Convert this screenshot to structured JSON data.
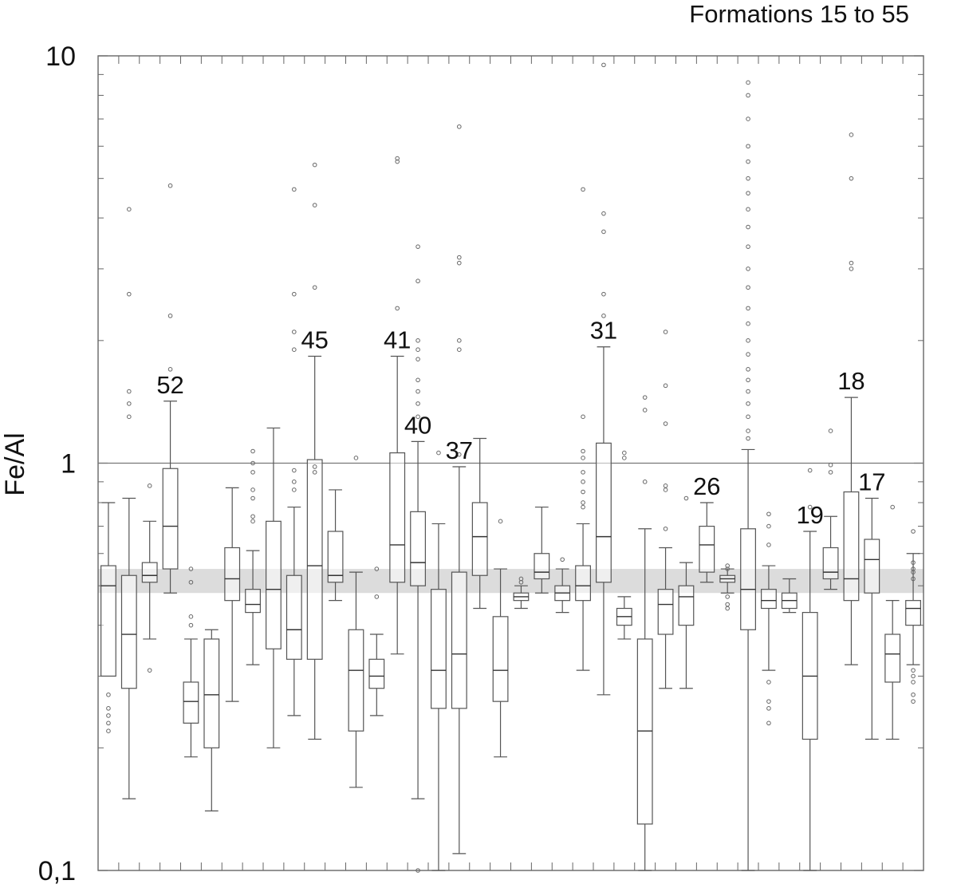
{
  "chart_data": {
    "type": "box",
    "title": "Formations 15 to 55",
    "ylabel": "Fe/Al",
    "xlabel": "",
    "yscale": "log",
    "ylim": [
      0.1,
      10
    ],
    "y_ticks": [
      {
        "value": 0.1,
        "label": "0,1"
      },
      {
        "value": 1,
        "label": "1"
      },
      {
        "value": 10,
        "label": "10"
      }
    ],
    "reference_line": 1,
    "reference_band": [
      0.48,
      0.55
    ],
    "formations": [
      {
        "label": "",
        "q1": 0.3,
        "median": 0.5,
        "q3": 0.56,
        "whisker_low": 0.3,
        "whisker_high": 0.8,
        "outliers": [
          0.27,
          0.25,
          0.24,
          0.23,
          0.22
        ]
      },
      {
        "label": "",
        "q1": 0.28,
        "median": 0.38,
        "q3": 0.53,
        "whisker_low": 0.15,
        "whisker_high": 0.82,
        "outliers": [
          4.2,
          2.6,
          1.5,
          1.4,
          1.3
        ]
      },
      {
        "label": "",
        "q1": 0.51,
        "median": 0.53,
        "q3": 0.57,
        "whisker_low": 0.37,
        "whisker_high": 0.72,
        "outliers": [
          0.88,
          0.31
        ]
      },
      {
        "label": "52",
        "q1": 0.55,
        "median": 0.7,
        "q3": 0.97,
        "whisker_low": 0.48,
        "whisker_high": 1.42,
        "outliers": [
          4.8,
          2.3,
          1.7
        ]
      },
      {
        "label": "",
        "q1": 0.23,
        "median": 0.26,
        "q3": 0.29,
        "whisker_low": 0.19,
        "whisker_high": 0.37,
        "outliers": [
          0.55,
          0.51,
          0.42,
          0.4
        ]
      },
      {
        "label": "",
        "q1": 0.2,
        "median": 0.27,
        "q3": 0.37,
        "whisker_low": 0.14,
        "whisker_high": 0.39,
        "outliers": []
      },
      {
        "label": "",
        "q1": 0.46,
        "median": 0.52,
        "q3": 0.62,
        "whisker_low": 0.26,
        "whisker_high": 0.87,
        "outliers": []
      },
      {
        "label": "",
        "q1": 0.43,
        "median": 0.45,
        "q3": 0.49,
        "whisker_low": 0.32,
        "whisker_high": 0.61,
        "outliers": [
          1.07,
          1.0,
          0.95,
          0.86,
          0.82,
          0.74,
          0.72
        ]
      },
      {
        "label": "",
        "q1": 0.35,
        "median": 0.49,
        "q3": 0.72,
        "whisker_low": 0.2,
        "whisker_high": 1.22,
        "outliers": []
      },
      {
        "label": "",
        "q1": 0.33,
        "median": 0.39,
        "q3": 0.53,
        "whisker_low": 0.24,
        "whisker_high": 0.78,
        "outliers": [
          4.7,
          2.6,
          2.1,
          1.9,
          0.96,
          0.9,
          0.86
        ]
      },
      {
        "label": "45",
        "q1": 0.33,
        "median": 0.56,
        "q3": 1.02,
        "whisker_low": 0.21,
        "whisker_high": 1.83,
        "outliers": [
          5.4,
          4.3,
          2.7,
          0.98,
          0.95
        ]
      },
      {
        "label": "",
        "q1": 0.51,
        "median": 0.53,
        "q3": 0.68,
        "whisker_low": 0.46,
        "whisker_high": 0.86,
        "outliers": []
      },
      {
        "label": "",
        "q1": 0.22,
        "median": 0.31,
        "q3": 0.39,
        "whisker_low": 0.16,
        "whisker_high": 0.54,
        "outliers": [
          1.03
        ]
      },
      {
        "label": "",
        "q1": 0.28,
        "median": 0.3,
        "q3": 0.33,
        "whisker_low": 0.24,
        "whisker_high": 0.38,
        "outliers": [
          0.55,
          0.47
        ]
      },
      {
        "label": "41",
        "q1": 0.51,
        "median": 0.63,
        "q3": 1.06,
        "whisker_low": 0.34,
        "whisker_high": 1.83,
        "outliers": [
          5.6,
          5.5,
          2.4
        ]
      },
      {
        "label": "40",
        "q1": 0.5,
        "median": 0.57,
        "q3": 0.76,
        "whisker_low": 0.15,
        "whisker_high": 1.13,
        "outliers": [
          3.4,
          2.8,
          2.0,
          1.9,
          1.8,
          1.6,
          1.5,
          1.4,
          1.3,
          0.1
        ]
      },
      {
        "label": "",
        "q1": 0.25,
        "median": 0.31,
        "q3": 0.49,
        "whisker_low": 0.1,
        "whisker_high": 0.71,
        "outliers": [
          1.06
        ]
      },
      {
        "label": "37",
        "q1": 0.25,
        "median": 0.34,
        "q3": 0.54,
        "whisker_low": 0.11,
        "whisker_high": 0.98,
        "outliers": [
          6.7,
          3.2,
          3.1,
          2.0,
          1.9,
          1.05
        ]
      },
      {
        "label": "",
        "q1": 0.53,
        "median": 0.66,
        "q3": 0.8,
        "whisker_low": 0.44,
        "whisker_high": 1.15,
        "outliers": []
      },
      {
        "label": "",
        "q1": 0.26,
        "median": 0.31,
        "q3": 0.42,
        "whisker_low": 0.19,
        "whisker_high": 0.55,
        "outliers": [
          0.72
        ]
      },
      {
        "label": "",
        "q1": 0.46,
        "median": 0.47,
        "q3": 0.48,
        "whisker_low": 0.44,
        "whisker_high": 0.5,
        "outliers": [
          0.52,
          0.51
        ]
      },
      {
        "label": "",
        "q1": 0.52,
        "median": 0.54,
        "q3": 0.6,
        "whisker_low": 0.48,
        "whisker_high": 0.78,
        "outliers": []
      },
      {
        "label": "",
        "q1": 0.46,
        "median": 0.48,
        "q3": 0.5,
        "whisker_low": 0.43,
        "whisker_high": 0.55,
        "outliers": [
          0.58
        ]
      },
      {
        "label": "",
        "q1": 0.46,
        "median": 0.5,
        "q3": 0.56,
        "whisker_low": 0.31,
        "whisker_high": 0.71,
        "outliers": [
          4.7,
          1.3,
          1.07,
          1.03,
          0.95,
          0.9,
          0.85,
          0.8,
          0.78
        ]
      },
      {
        "label": "31",
        "q1": 0.51,
        "median": 0.66,
        "q3": 1.12,
        "whisker_low": 0.27,
        "whisker_high": 1.93,
        "outliers": [
          9.5,
          4.1,
          3.7,
          2.6,
          2.3
        ]
      },
      {
        "label": "",
        "q1": 0.4,
        "median": 0.42,
        "q3": 0.44,
        "whisker_low": 0.37,
        "whisker_high": 0.47,
        "outliers": [
          1.06,
          1.03
        ]
      },
      {
        "label": "",
        "q1": 0.13,
        "median": 0.22,
        "q3": 0.37,
        "whisker_low": 0.1,
        "whisker_high": 0.69,
        "outliers": [
          1.45,
          1.35,
          0.9
        ]
      },
      {
        "label": "",
        "q1": 0.38,
        "median": 0.45,
        "q3": 0.49,
        "whisker_low": 0.28,
        "whisker_high": 0.62,
        "outliers": [
          2.1,
          1.55,
          1.25,
          0.88,
          0.86,
          0.69
        ]
      },
      {
        "label": "",
        "q1": 0.4,
        "median": 0.47,
        "q3": 0.5,
        "whisker_low": 0.28,
        "whisker_high": 0.57,
        "outliers": [
          0.82
        ]
      },
      {
        "label": "26",
        "q1": 0.54,
        "median": 0.63,
        "q3": 0.7,
        "whisker_low": 0.51,
        "whisker_high": 0.8,
        "outliers": []
      },
      {
        "label": "",
        "q1": 0.51,
        "median": 0.52,
        "q3": 0.53,
        "whisker_low": 0.48,
        "whisker_high": 0.55,
        "outliers": [
          0.56,
          0.55,
          0.47,
          0.45,
          0.44
        ]
      },
      {
        "label": "",
        "q1": 0.39,
        "median": 0.49,
        "q3": 0.69,
        "whisker_low": 0.1,
        "whisker_high": 1.08,
        "outliers": [
          8.6,
          8.0,
          7.0,
          6.0,
          5.5,
          5.0,
          4.6,
          4.2,
          3.8,
          3.4,
          3.0,
          2.7,
          2.4,
          2.2,
          2.0,
          1.85,
          1.7,
          1.6,
          1.5,
          1.4,
          1.3,
          1.2,
          1.15
        ]
      },
      {
        "label": "",
        "q1": 0.44,
        "median": 0.46,
        "q3": 0.49,
        "whisker_low": 0.31,
        "whisker_high": 0.56,
        "outliers": [
          0.75,
          0.7,
          0.63,
          0.29,
          0.26,
          0.25,
          0.23
        ]
      },
      {
        "label": "",
        "q1": 0.44,
        "median": 0.46,
        "q3": 0.48,
        "whisker_low": 0.43,
        "whisker_high": 0.52,
        "outliers": []
      },
      {
        "label": "19",
        "q1": 0.21,
        "median": 0.3,
        "q3": 0.43,
        "whisker_low": 0.1,
        "whisker_high": 0.68,
        "outliers": [
          0.78,
          0.96
        ]
      },
      {
        "label": "",
        "q1": 0.52,
        "median": 0.54,
        "q3": 0.62,
        "whisker_low": 0.49,
        "whisker_high": 0.74,
        "outliers": [
          1.2,
          0.99,
          0.95
        ]
      },
      {
        "label": "18",
        "q1": 0.46,
        "median": 0.52,
        "q3": 0.85,
        "whisker_low": 0.32,
        "whisker_high": 1.45,
        "outliers": [
          6.4,
          5.0,
          3.1,
          3.0
        ]
      },
      {
        "label": "17",
        "q1": 0.48,
        "median": 0.58,
        "q3": 0.65,
        "whisker_low": 0.21,
        "whisker_high": 0.82,
        "outliers": []
      },
      {
        "label": "",
        "q1": 0.29,
        "median": 0.34,
        "q3": 0.38,
        "whisker_low": 0.21,
        "whisker_high": 0.46,
        "outliers": [
          0.78
        ]
      },
      {
        "label": "",
        "q1": 0.4,
        "median": 0.44,
        "q3": 0.46,
        "whisker_low": 0.32,
        "whisker_high": 0.6,
        "outliers": [
          0.68,
          0.57,
          0.55,
          0.54,
          0.52,
          0.31,
          0.3,
          0.29,
          0.27,
          0.26
        ]
      }
    ]
  }
}
